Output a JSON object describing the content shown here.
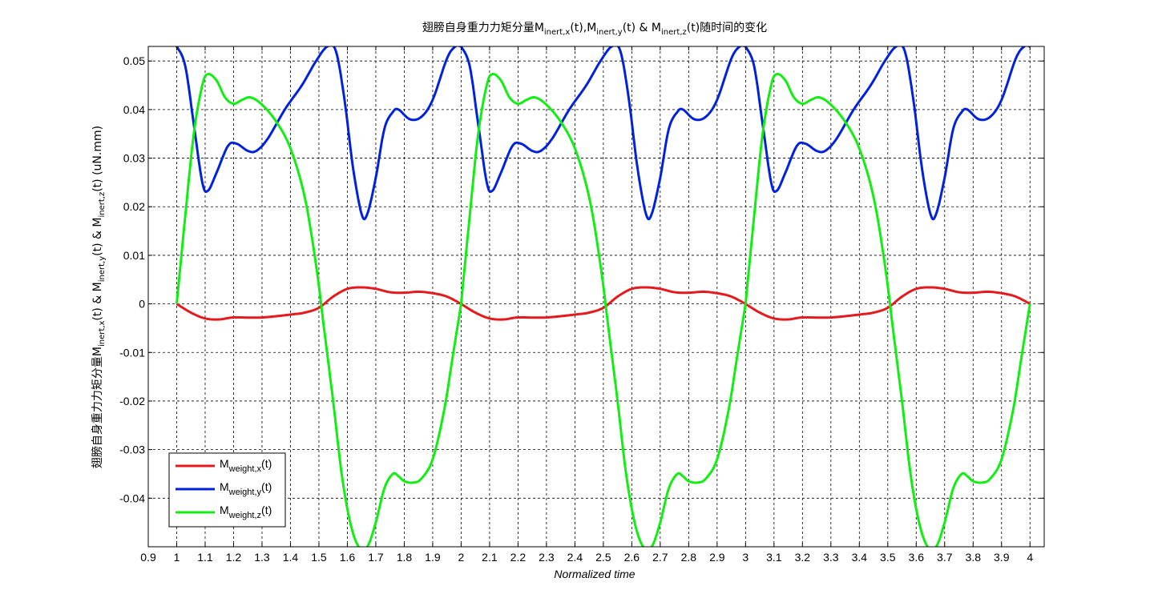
{
  "chart_data": {
    "type": "line",
    "title": {
      "prefix": "翅膀自身重力力矩分量",
      "m1": "M",
      "s1": "inert,x",
      "t1": "(t),",
      "m2": "M",
      "s2": "inert,y",
      "t2": "(t) & ",
      "m3": "M",
      "s3": "inert,z",
      "t3": "(t)随时间的变化"
    },
    "xlabel": "Normalized time",
    "ylabel": {
      "prefix": "翅膀自身重力力矩分量",
      "m1": "M",
      "s1": "inert,x",
      "t1": "(t) & ",
      "m2": "M",
      "s2": "inert,y",
      "t2": "(t) & ",
      "m3": "M",
      "s3": "inert,z",
      "t3": "(t) (uN.mm)"
    },
    "xlim": [
      0.9,
      4.05
    ],
    "ylim": [
      -0.05,
      0.053
    ],
    "grid": true,
    "legend_placement": "bottom-left",
    "xticks": [
      "0.9",
      "1",
      "1.1",
      "1.2",
      "1.3",
      "1.4",
      "1.5",
      "1.6",
      "1.7",
      "1.8",
      "1.9",
      "2",
      "2.1",
      "2.2",
      "2.3",
      "2.4",
      "2.5",
      "2.6",
      "2.7",
      "2.8",
      "2.9",
      "3",
      "3.1",
      "3.2",
      "3.3",
      "3.4",
      "3.5",
      "3.6",
      "3.7",
      "3.8",
      "3.9",
      "4"
    ],
    "yticks": [
      "0.05",
      "0.04",
      "0.03",
      "0.02",
      "0.01",
      "0",
      "-0.01",
      "-0.02",
      "-0.03",
      "-0.04"
    ],
    "series": [
      {
        "name": "M",
        "sub": "weight,x",
        "suffix": "(t)",
        "color": "#e41a1c",
        "points": [
          [
            1.0,
            0.0
          ],
          [
            1.05,
            -0.0018
          ],
          [
            1.1,
            -0.003
          ],
          [
            1.15,
            -0.0032
          ],
          [
            1.2,
            -0.0028
          ],
          [
            1.3,
            -0.0028
          ],
          [
            1.4,
            -0.0022
          ],
          [
            1.45,
            -0.0018
          ],
          [
            1.5,
            -0.0008
          ],
          [
            1.55,
            0.0015
          ],
          [
            1.6,
            0.0031
          ],
          [
            1.65,
            0.0034
          ],
          [
            1.7,
            0.0031
          ],
          [
            1.75,
            0.0024
          ],
          [
            1.8,
            0.0023
          ],
          [
            1.85,
            0.0025
          ],
          [
            1.9,
            0.0022
          ],
          [
            1.95,
            0.0015
          ],
          [
            2.0,
            0.0
          ]
        ]
      },
      {
        "name": "M",
        "sub": "weight,y",
        "suffix": "(t)",
        "color": "#0022dd",
        "points": [
          [
            1.0,
            0.053
          ],
          [
            1.03,
            0.049
          ],
          [
            1.06,
            0.037
          ],
          [
            1.09,
            0.025
          ],
          [
            1.11,
            0.0233
          ],
          [
            1.14,
            0.027
          ],
          [
            1.18,
            0.0325
          ],
          [
            1.21,
            0.033
          ],
          [
            1.25,
            0.0315
          ],
          [
            1.28,
            0.0315
          ],
          [
            1.32,
            0.034
          ],
          [
            1.38,
            0.04
          ],
          [
            1.44,
            0.045
          ],
          [
            1.49,
            0.05
          ],
          [
            1.53,
            0.053
          ],
          [
            1.56,
            0.052
          ],
          [
            1.59,
            0.042
          ],
          [
            1.62,
            0.028
          ],
          [
            1.65,
            0.0185
          ],
          [
            1.67,
            0.0185
          ],
          [
            1.7,
            0.026
          ],
          [
            1.73,
            0.036
          ],
          [
            1.76,
            0.0395
          ],
          [
            1.78,
            0.04
          ],
          [
            1.82,
            0.038
          ],
          [
            1.86,
            0.0385
          ],
          [
            1.9,
            0.042
          ],
          [
            1.95,
            0.0505
          ],
          [
            1.98,
            0.053
          ],
          [
            2.0,
            0.053
          ]
        ]
      },
      {
        "name": "M",
        "sub": "weight,z",
        "suffix": "(t)",
        "color": "#11ee11",
        "points": [
          [
            1.0,
            0.0
          ],
          [
            1.03,
            0.018
          ],
          [
            1.06,
            0.035
          ],
          [
            1.09,
            0.045
          ],
          [
            1.11,
            0.0473
          ],
          [
            1.14,
            0.046
          ],
          [
            1.17,
            0.0425
          ],
          [
            1.2,
            0.0412
          ],
          [
            1.23,
            0.042
          ],
          [
            1.26,
            0.0425
          ],
          [
            1.3,
            0.041
          ],
          [
            1.35,
            0.0375
          ],
          [
            1.4,
            0.032
          ],
          [
            1.45,
            0.022
          ],
          [
            1.49,
            0.008
          ],
          [
            1.52,
            -0.006
          ],
          [
            1.55,
            -0.02
          ],
          [
            1.58,
            -0.035
          ],
          [
            1.61,
            -0.045
          ],
          [
            1.64,
            -0.05
          ],
          [
            1.67,
            -0.05
          ],
          [
            1.7,
            -0.045
          ],
          [
            1.73,
            -0.038
          ],
          [
            1.76,
            -0.035
          ],
          [
            1.78,
            -0.0355
          ],
          [
            1.8,
            -0.0365
          ],
          [
            1.83,
            -0.0368
          ],
          [
            1.86,
            -0.036
          ],
          [
            1.9,
            -0.032
          ],
          [
            1.94,
            -0.022
          ],
          [
            1.97,
            -0.011
          ],
          [
            2.0,
            0.0
          ]
        ]
      }
    ]
  }
}
